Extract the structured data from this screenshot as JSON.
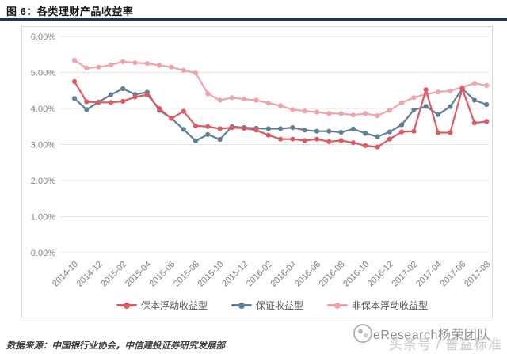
{
  "header": {
    "title": "图 6：各类理财产品收益率"
  },
  "colors": {
    "title_rule": "#16365c",
    "grid": "#e4e4e4",
    "panel_border": "#d9d9d9",
    "axis_text": "#7f7f7f"
  },
  "chart_data": {
    "type": "line",
    "title": "各类理财产品收益率",
    "xlabel": "",
    "ylabel": "",
    "ylim": [
      0,
      6
    ],
    "grid": true,
    "legend_position": "bottom",
    "yticks": [
      "6.00%",
      "5.00%",
      "4.00%",
      "3.00%",
      "2.00%",
      "1.00%",
      "0.00%"
    ],
    "x_tick_interval": 2,
    "x": [
      "2014-10",
      "2014-11",
      "2014-12",
      "2015-01",
      "2015-02",
      "2015-03",
      "2015-04",
      "2015-05",
      "2015-06",
      "2015-07",
      "2015-08",
      "2015-09",
      "2015-10",
      "2015-11",
      "2015-12",
      "2016-01",
      "2016-02",
      "2016-03",
      "2016-04",
      "2016-05",
      "2016-06",
      "2016-07",
      "2016-08",
      "2016-09",
      "2016-10",
      "2016-11",
      "2016-12",
      "2017-01",
      "2017-02",
      "2017-03",
      "2017-04",
      "2017-05",
      "2017-06",
      "2017-07",
      "2017-08"
    ],
    "series": [
      {
        "name": "保本浮动收益型",
        "color": "#dc5b62",
        "values": [
          4.75,
          4.19,
          4.17,
          4.17,
          4.2,
          4.32,
          4.38,
          4.0,
          3.72,
          3.92,
          3.52,
          3.5,
          3.44,
          3.47,
          3.45,
          3.4,
          3.26,
          3.15,
          3.15,
          3.11,
          3.15,
          3.08,
          3.11,
          3.05,
          2.97,
          2.93,
          3.15,
          3.35,
          3.37,
          4.52,
          3.33,
          3.33,
          4.55,
          3.6,
          3.64
        ]
      },
      {
        "name": "保证收益型",
        "color": "#5e7f96",
        "values": [
          4.28,
          3.97,
          4.18,
          4.38,
          4.55,
          4.39,
          4.45,
          3.95,
          3.73,
          3.42,
          3.1,
          3.28,
          3.14,
          3.5,
          3.47,
          3.45,
          3.44,
          3.44,
          3.47,
          3.4,
          3.37,
          3.37,
          3.34,
          3.43,
          3.31,
          3.22,
          3.35,
          3.55,
          3.96,
          4.06,
          3.83,
          4.05,
          4.55,
          4.23,
          4.11
        ]
      },
      {
        "name": "非保本浮动收益型",
        "color": "#f0a3ab",
        "values": [
          5.34,
          5.12,
          5.15,
          5.21,
          5.3,
          5.27,
          5.25,
          5.2,
          5.15,
          5.06,
          4.99,
          4.41,
          4.23,
          4.3,
          4.26,
          4.23,
          4.15,
          4.08,
          3.97,
          3.93,
          3.9,
          3.86,
          3.86,
          3.82,
          3.86,
          3.8,
          3.95,
          4.16,
          4.3,
          4.4,
          4.46,
          4.49,
          4.59,
          4.7,
          4.64
        ]
      }
    ]
  },
  "footer": {
    "source": "数据来源：中国银行业协会，中信建投证券研究发展部"
  },
  "watermark": {
    "icon": "logo-circle-icon",
    "line1": "eResearch杨荣团队",
    "line2": "头条号 / 普益标准"
  }
}
